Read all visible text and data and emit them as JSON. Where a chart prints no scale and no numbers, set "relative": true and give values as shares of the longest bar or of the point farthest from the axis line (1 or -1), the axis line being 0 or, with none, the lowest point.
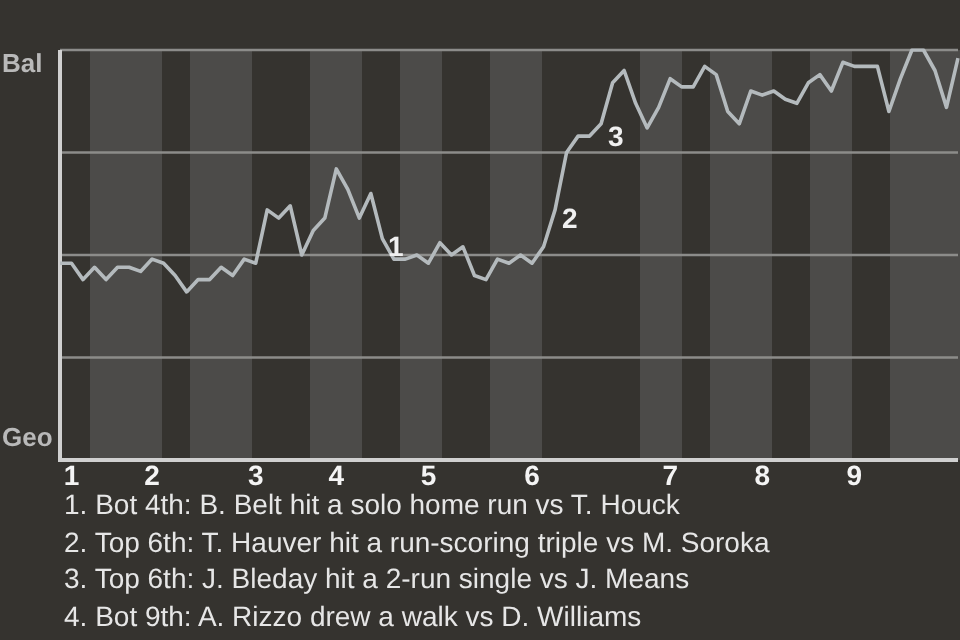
{
  "chart_data": {
    "type": "line",
    "relative": true,
    "categories": [
      null,
      "1",
      null,
      null,
      null,
      null,
      null,
      null,
      "2",
      null,
      null,
      null,
      null,
      null,
      null,
      null,
      null,
      "3",
      null,
      null,
      null,
      null,
      null,
      null,
      "4",
      null,
      null,
      null,
      null,
      null,
      null,
      null,
      "5",
      null,
      null,
      null,
      null,
      null,
      null,
      null,
      null,
      "6",
      null,
      null,
      null,
      null,
      null,
      null,
      null,
      null,
      null,
      null,
      null,
      "7",
      null,
      null,
      null,
      null,
      null,
      null,
      null,
      "8",
      null,
      null,
      null,
      null,
      null,
      null,
      null,
      "9",
      null,
      null,
      null,
      null,
      null,
      null,
      null,
      null,
      null
    ],
    "series": [
      {
        "color": "#b4babd",
        "values": [
          0.48,
          0.48,
          0.44,
          0.47,
          0.44,
          0.47,
          0.47,
          0.46,
          0.49,
          0.48,
          0.45,
          0.41,
          0.44,
          0.44,
          0.47,
          0.45,
          0.49,
          0.48,
          0.61,
          0.59,
          0.62,
          0.5,
          0.56,
          0.59,
          0.71,
          0.66,
          0.59,
          0.65,
          0.54,
          0.49,
          0.49,
          0.5,
          0.48,
          0.53,
          0.5,
          0.52,
          0.45,
          0.44,
          0.49,
          0.48,
          0.5,
          0.48,
          0.52,
          0.61,
          0.75,
          0.79,
          0.79,
          0.82,
          0.92,
          0.95,
          0.87,
          0.81,
          0.86,
          0.93,
          0.91,
          0.91,
          0.96,
          0.94,
          0.85,
          0.82,
          0.9,
          0.89,
          0.9,
          0.88,
          0.87,
          0.92,
          0.94,
          0.9,
          0.97,
          0.96,
          0.96,
          0.96,
          0.85,
          0.93,
          1,
          1,
          0.95,
          0.86,
          0.98
        ],
        "name": null
      }
    ],
    "grid": "y",
    "legend": false,
    "marker": "none",
    "line_style": "solid",
    "annotations": [
      "Bal",
      "Geo",
      "1",
      "2",
      "3",
      "1. Bot 4th: B. Belt hit a solo home run vs T. Houck",
      "2. Top 6th: T. Hauver hit a run-scoring triple vs M. Soroka",
      "3. Top 6th: J. Bleday hit a 2-run single vs J. Means",
      "4. Bot 9th: A. Rizzo drew a walk vs D. Williams"
    ]
  }
}
